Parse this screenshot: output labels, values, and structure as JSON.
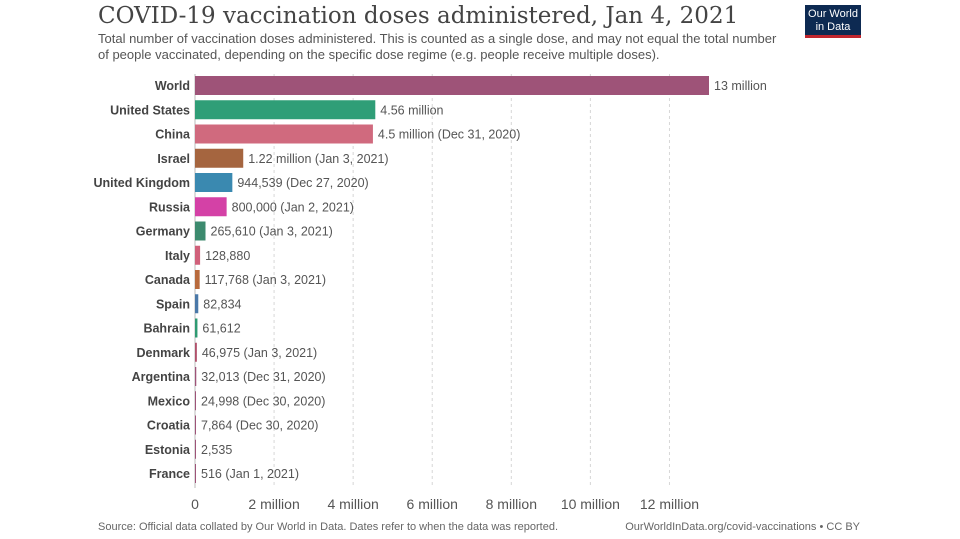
{
  "chart_data": {
    "type": "bar",
    "orientation": "horizontal",
    "title": "COVID-19 vaccination doses administered, Jan 4, 2021",
    "subtitle": "Total number of vaccination doses administered. This is counted as a single dose, and may not equal the total number of people vaccinated, depending on the specific dose regime (e.g. people receive multiple doses).",
    "xlim": [
      0,
      13000000
    ],
    "ticks": [
      {
        "value": 0,
        "label": "0"
      },
      {
        "value": 2000000,
        "label": "2 million"
      },
      {
        "value": 4000000,
        "label": "4 million"
      },
      {
        "value": 6000000,
        "label": "6 million"
      },
      {
        "value": 8000000,
        "label": "8 million"
      },
      {
        "value": 10000000,
        "label": "10 million"
      },
      {
        "value": 12000000,
        "label": "12 million"
      }
    ],
    "grid": true,
    "bars": [
      {
        "category": "World",
        "value": 13000000,
        "label": "13 million",
        "color": "#9e5378"
      },
      {
        "category": "United States",
        "value": 4560000,
        "label": "4.56 million",
        "color": "#2f9e77"
      },
      {
        "category": "China",
        "value": 4500000,
        "label": "4.5 million (Dec 31, 2020)",
        "color": "#d06a7e"
      },
      {
        "category": "Israel",
        "value": 1220000,
        "label": "1.22 million (Jan 3, 2021)",
        "color": "#a5653f"
      },
      {
        "category": "United Kingdom",
        "value": 944539,
        "label": "944,539 (Dec 27, 2020)",
        "color": "#3a89b0"
      },
      {
        "category": "Russia",
        "value": 800000,
        "label": "800,000 (Jan 2, 2021)",
        "color": "#d441a6"
      },
      {
        "category": "Germany",
        "value": 265610,
        "label": "265,610 (Jan 3, 2021)",
        "color": "#3c8a6e"
      },
      {
        "category": "Italy",
        "value": 128880,
        "label": "128,880",
        "color": "#d0607a"
      },
      {
        "category": "Canada",
        "value": 117768,
        "label": "117,768 (Jan 3, 2021)",
        "color": "#b86a3d"
      },
      {
        "category": "Spain",
        "value": 82834,
        "label": "82,834",
        "color": "#4a78a8"
      },
      {
        "category": "Bahrain",
        "value": 61612,
        "label": "61,612",
        "color": "#2e9a72"
      },
      {
        "category": "Denmark",
        "value": 46975,
        "label": "46,975 (Jan 3, 2021)",
        "color": "#b0506a"
      },
      {
        "category": "Argentina",
        "value": 32013,
        "label": "32,013 (Dec 31, 2020)",
        "color": "#9e5378"
      },
      {
        "category": "Mexico",
        "value": 24998,
        "label": "24,998 (Dec 30, 2020)",
        "color": "#9e5378"
      },
      {
        "category": "Croatia",
        "value": 7864,
        "label": "7,864 (Dec 30, 2020)",
        "color": "#9e5378"
      },
      {
        "category": "Estonia",
        "value": 2535,
        "label": "2,535",
        "color": "#9e5378"
      },
      {
        "category": "France",
        "value": 516,
        "label": "516 (Jan 1, 2021)",
        "color": "#9e5378"
      }
    ]
  },
  "logo": {
    "line1": "Our World",
    "line2": "in Data"
  },
  "footer": {
    "source": "Source: Official data collated by Our World in Data. Dates refer to when the data was reported.",
    "link": "OurWorldInData.org/covid-vaccinations • CC BY"
  }
}
